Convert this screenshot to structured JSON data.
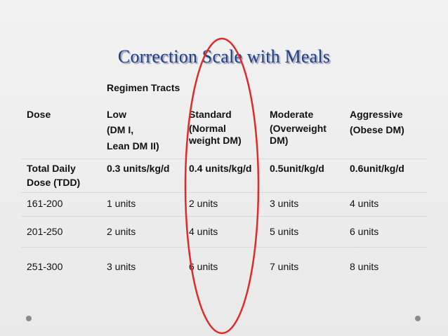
{
  "title": "Correction Scale with Meals",
  "subhead": "Regimen Tracts",
  "header_row": {
    "dose": "Dose",
    "low": [
      "Low",
      "(DM I,",
      "Lean DM II)"
    ],
    "standard": [
      "Standard",
      "(Normal",
      "weight DM)"
    ],
    "moderate": [
      "Moderate",
      "(Overweight",
      "DM)"
    ],
    "aggressive": [
      "Aggressive",
      "(Obese DM)"
    ]
  },
  "tdd_row": {
    "label": [
      "Total Daily",
      "Dose (TDD)"
    ],
    "low": "0.3 units/kg/d",
    "standard": "0.4 units/kg/d",
    "moderate": "0.5unit/kg/d",
    "aggressive": "0.6unit/kg/d"
  },
  "rows": [
    {
      "range": "161-200",
      "low": "1 units",
      "standard": "2 units",
      "moderate": "3 units",
      "aggressive": "4 units"
    },
    {
      "range": "201-250",
      "low": "2 units",
      "standard": "4 units",
      "moderate": "5 units",
      "aggressive": "6 units"
    },
    {
      "range": "251-300",
      "low": "3 units",
      "standard": "6 units",
      "moderate": "7 units",
      "aggressive": "8 units"
    }
  ],
  "colors": {
    "title": "#1f3f8a",
    "highlight_oval": "#e02a2a"
  }
}
